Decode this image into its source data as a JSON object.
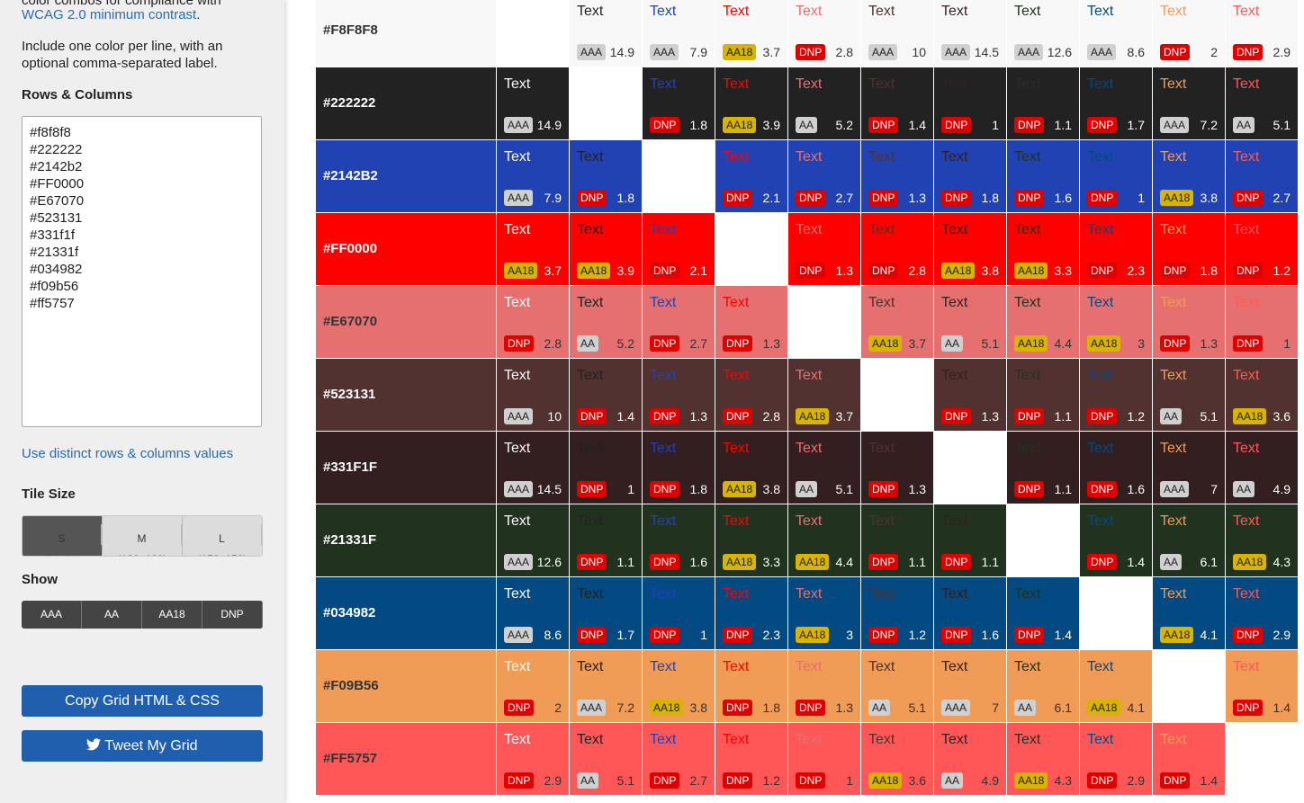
{
  "sidebar": {
    "intro_top": "color combos for compliance with",
    "intro_link": "WCAG 2.0 minimum contrast",
    "intro_end": ".",
    "instructions": "Include one color per line, with an optional comma-separated label.",
    "rows_columns_heading": "Rows & Columns",
    "textarea_lines": [
      "#f8f8f8",
      "#222222",
      "#2142b2",
      "#FF0000",
      "#E67070",
      "#523131",
      "#331f1f",
      "#21331f",
      "#034982",
      "#f09b56",
      "#ff5757"
    ],
    "distinct_link": "Use distinct rows & columns values",
    "tile_size_heading": "Tile Size",
    "tile_sizes": [
      {
        "label": "S",
        "size": "(80×80)"
      },
      {
        "label": "M",
        "size": "(100×100)"
      },
      {
        "label": "L",
        "size": "(150×150)"
      }
    ],
    "show_heading": "Show",
    "show_options": [
      "AAA",
      "AA",
      "AA18",
      "DNP"
    ],
    "copy_button": "Copy Grid HTML & CSS",
    "tweet_button": "Tweet My Grid"
  },
  "grid": {
    "rows": [
      {
        "label": "#F8F8F8",
        "cells": [
          null,
          {
            "text": "Text",
            "badge": "AAA",
            "ratio": 14.9
          },
          {
            "text": "Text",
            "badge": "AAA",
            "ratio": 7.9
          },
          {
            "text": "Text",
            "badge": "AA18",
            "ratio": 3.7
          },
          {
            "text": "Text",
            "badge": "DNP",
            "ratio": 2.8
          },
          {
            "text": "Text",
            "badge": "AAA",
            "ratio": 10
          },
          {
            "text": "Text",
            "badge": "AAA",
            "ratio": 14.5
          },
          {
            "text": "Text",
            "badge": "AAA",
            "ratio": 12.6
          },
          {
            "text": "Text",
            "badge": "AAA",
            "ratio": 8.6
          },
          {
            "text": "Text",
            "badge": "DNP",
            "ratio": 2
          },
          {
            "text": "Text",
            "badge": "DNP",
            "ratio": 2.9
          }
        ]
      },
      {
        "label": "#222222",
        "cells": [
          {
            "text": "Text",
            "badge": "AAA",
            "ratio": 14.9
          },
          null,
          {
            "text": "Text",
            "badge": "DNP",
            "ratio": 1.8
          },
          {
            "text": "Text",
            "badge": "AA18",
            "ratio": 3.9
          },
          {
            "text": "Text",
            "badge": "AA",
            "ratio": 5.2
          },
          {
            "text": "Text",
            "badge": "DNP",
            "ratio": 1.4
          },
          {
            "text": "Text",
            "badge": "DNP",
            "ratio": 1
          },
          {
            "text": "Text",
            "badge": "DNP",
            "ratio": 1.1
          },
          {
            "text": "Text",
            "badge": "DNP",
            "ratio": 1.7
          },
          {
            "text": "Text",
            "badge": "AAA",
            "ratio": 7.2
          },
          {
            "text": "Text",
            "badge": "AA",
            "ratio": 5.1
          }
        ]
      },
      {
        "label": "#2142B2",
        "cells": [
          {
            "text": "Text",
            "badge": "AAA",
            "ratio": 7.9
          },
          {
            "text": "Text",
            "badge": "DNP",
            "ratio": 1.8
          },
          null,
          {
            "text": "Text",
            "badge": "DNP",
            "ratio": 2.1
          },
          {
            "text": "Text",
            "badge": "DNP",
            "ratio": 2.7
          },
          {
            "text": "Text",
            "badge": "DNP",
            "ratio": 1.3
          },
          {
            "text": "Text",
            "badge": "DNP",
            "ratio": 1.8
          },
          {
            "text": "Text",
            "badge": "DNP",
            "ratio": 1.6
          },
          {
            "text": "Text",
            "badge": "DNP",
            "ratio": 1
          },
          {
            "text": "Text",
            "badge": "AA18",
            "ratio": 3.8
          },
          {
            "text": "Text",
            "badge": "DNP",
            "ratio": 2.7
          }
        ]
      },
      {
        "label": "#FF0000",
        "cells": [
          {
            "text": "Text",
            "badge": "AA18",
            "ratio": 3.7
          },
          {
            "text": "Text",
            "badge": "AA18",
            "ratio": 3.9
          },
          {
            "text": "Text",
            "badge": "DNP",
            "ratio": 2.1
          },
          null,
          {
            "text": "Text",
            "badge": "DNP",
            "ratio": 1.3
          },
          {
            "text": "Text",
            "badge": "DNP",
            "ratio": 2.8
          },
          {
            "text": "Text",
            "badge": "AA18",
            "ratio": 3.8
          },
          {
            "text": "Text",
            "badge": "AA18",
            "ratio": 3.3
          },
          {
            "text": "Text",
            "badge": "DNP",
            "ratio": 2.3
          },
          {
            "text": "Text",
            "badge": "DNP",
            "ratio": 1.8
          },
          {
            "text": "Text",
            "badge": "DNP",
            "ratio": 1.2
          }
        ]
      },
      {
        "label": "#E67070",
        "cells": [
          {
            "text": "Text",
            "badge": "DNP",
            "ratio": 2.8
          },
          {
            "text": "Text",
            "badge": "AA",
            "ratio": 5.2
          },
          {
            "text": "Text",
            "badge": "DNP",
            "ratio": 2.7
          },
          {
            "text": "Text",
            "badge": "DNP",
            "ratio": 1.3
          },
          null,
          {
            "text": "Text",
            "badge": "AA18",
            "ratio": 3.7
          },
          {
            "text": "Text",
            "badge": "AA",
            "ratio": 5.1
          },
          {
            "text": "Text",
            "badge": "AA18",
            "ratio": 4.4
          },
          {
            "text": "Text",
            "badge": "AA18",
            "ratio": 3
          },
          {
            "text": "Text",
            "badge": "DNP",
            "ratio": 1.3
          },
          {
            "text": "Text",
            "badge": "DNP",
            "ratio": 1
          }
        ]
      },
      {
        "label": "#523131",
        "cells": [
          {
            "text": "Text",
            "badge": "AAA",
            "ratio": 10
          },
          {
            "text": "Text",
            "badge": "DNP",
            "ratio": 1.4
          },
          {
            "text": "Text",
            "badge": "DNP",
            "ratio": 1.3
          },
          {
            "text": "Text",
            "badge": "DNP",
            "ratio": 2.8
          },
          {
            "text": "Text",
            "badge": "AA18",
            "ratio": 3.7
          },
          null,
          {
            "text": "Text",
            "badge": "DNP",
            "ratio": 1.3
          },
          {
            "text": "Text",
            "badge": "DNP",
            "ratio": 1.1
          },
          {
            "text": "Text",
            "badge": "DNP",
            "ratio": 1.2
          },
          {
            "text": "Text",
            "badge": "AA",
            "ratio": 5.1
          },
          {
            "text": "Text",
            "badge": "AA18",
            "ratio": 3.6
          }
        ]
      },
      {
        "label": "#331F1F",
        "cells": [
          {
            "text": "Text",
            "badge": "AAA",
            "ratio": 14.5
          },
          {
            "text": "Text",
            "badge": "DNP",
            "ratio": 1
          },
          {
            "text": "Text",
            "badge": "DNP",
            "ratio": 1.8
          },
          {
            "text": "Text",
            "badge": "AA18",
            "ratio": 3.8
          },
          {
            "text": "Text",
            "badge": "AA",
            "ratio": 5.1
          },
          {
            "text": "Text",
            "badge": "DNP",
            "ratio": 1.3
          },
          null,
          {
            "text": "Text",
            "badge": "DNP",
            "ratio": 1.1
          },
          {
            "text": "Text",
            "badge": "DNP",
            "ratio": 1.6
          },
          {
            "text": "Text",
            "badge": "AAA",
            "ratio": 7
          },
          {
            "text": "Text",
            "badge": "AA",
            "ratio": 4.9
          }
        ]
      },
      {
        "label": "#21331F",
        "cells": [
          {
            "text": "Text",
            "badge": "AAA",
            "ratio": 12.6
          },
          {
            "text": "Text",
            "badge": "DNP",
            "ratio": 1.1
          },
          {
            "text": "Text",
            "badge": "DNP",
            "ratio": 1.6
          },
          {
            "text": "Text",
            "badge": "AA18",
            "ratio": 3.3
          },
          {
            "text": "Text",
            "badge": "AA18",
            "ratio": 4.4
          },
          {
            "text": "Text",
            "badge": "DNP",
            "ratio": 1.1
          },
          {
            "text": "Text",
            "badge": "DNP",
            "ratio": 1.1
          },
          null,
          {
            "text": "Text",
            "badge": "DNP",
            "ratio": 1.4
          },
          {
            "text": "Text",
            "badge": "AA",
            "ratio": 6.1
          },
          {
            "text": "Text",
            "badge": "AA18",
            "ratio": 4.3
          }
        ]
      },
      {
        "label": "#034982",
        "cells": [
          {
            "text": "Text",
            "badge": "AAA",
            "ratio": 8.6
          },
          {
            "text": "Text",
            "badge": "DNP",
            "ratio": 1.7
          },
          {
            "text": "Text",
            "badge": "DNP",
            "ratio": 1
          },
          {
            "text": "Text",
            "badge": "DNP",
            "ratio": 2.3
          },
          {
            "text": "Text",
            "badge": "AA18",
            "ratio": 3
          },
          {
            "text": "Text",
            "badge": "DNP",
            "ratio": 1.2
          },
          {
            "text": "Text",
            "badge": "DNP",
            "ratio": 1.6
          },
          {
            "text": "Text",
            "badge": "DNP",
            "ratio": 1.4
          },
          null,
          {
            "text": "Text",
            "badge": "AA18",
            "ratio": 4.1
          },
          {
            "text": "Text",
            "badge": "DNP",
            "ratio": 2.9
          }
        ]
      },
      {
        "label": "#F09B56",
        "cells": [
          {
            "text": "Text",
            "badge": "DNP",
            "ratio": 2
          },
          {
            "text": "Text",
            "badge": "AAA",
            "ratio": 7.2
          },
          {
            "text": "Text",
            "badge": "AA18",
            "ratio": 3.8
          },
          {
            "text": "Text",
            "badge": "DNP",
            "ratio": 1.8
          },
          {
            "text": "Text",
            "badge": "DNP",
            "ratio": 1.3
          },
          {
            "text": "Text",
            "badge": "AA",
            "ratio": 5.1
          },
          {
            "text": "Text",
            "badge": "AAA",
            "ratio": 7
          },
          {
            "text": "Text",
            "badge": "AA",
            "ratio": 6.1
          },
          {
            "text": "Text",
            "badge": "AA18",
            "ratio": 4.1
          },
          null,
          {
            "text": "Text",
            "badge": "DNP",
            "ratio": 1.4
          }
        ]
      },
      {
        "label": "#FF5757",
        "cells": [
          {
            "text": "Text",
            "badge": "DNP",
            "ratio": 2.9
          },
          {
            "text": "Text",
            "badge": "AA",
            "ratio": 5.1
          },
          {
            "text": "Text",
            "badge": "DNP",
            "ratio": 2.7
          },
          {
            "text": "Text",
            "badge": "DNP",
            "ratio": 1.2
          },
          {
            "text": "Text",
            "badge": "DNP",
            "ratio": 1
          },
          {
            "text": "Text",
            "badge": "AA18",
            "ratio": 3.6
          },
          {
            "text": "Text",
            "badge": "AA",
            "ratio": 4.9
          },
          {
            "text": "Text",
            "badge": "AA18",
            "ratio": 4.3
          },
          {
            "text": "Text",
            "badge": "DNP",
            "ratio": 2.9
          },
          {
            "text": "Text",
            "badge": "DNP",
            "ratio": 1.4
          },
          null
        ]
      }
    ]
  }
}
